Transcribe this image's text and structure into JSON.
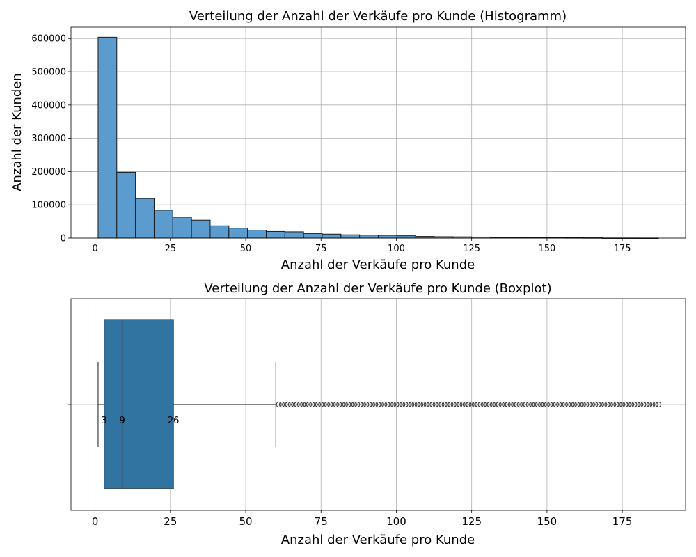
{
  "chart_data": [
    {
      "type": "bar",
      "title": "Verteilung der Anzahl der Verkäufe pro Kunde (Histogramm)",
      "xlabel": "Anzahl der Verkäufe pro Kunde",
      "ylabel": "Anzahl der Kunden",
      "xlim": [
        -8,
        196
      ],
      "ylim": [
        0,
        634000
      ],
      "xticks": [
        0,
        25,
        50,
        75,
        100,
        125,
        150,
        175
      ],
      "yticks": [
        0,
        100000,
        200000,
        300000,
        400000,
        500000,
        600000
      ],
      "grid": true,
      "bar_color": "#5b9bcd",
      "bins": {
        "start": 1,
        "width": 6.2,
        "values": [
          604000,
          198000,
          119000,
          84000,
          63000,
          54000,
          37000,
          30000,
          24000,
          20000,
          19000,
          14000,
          12000,
          10000,
          9000,
          8500,
          7000,
          5000,
          4200,
          3800,
          3200,
          2200,
          1800,
          1500,
          1300,
          1100,
          900,
          300,
          250,
          200
        ]
      }
    },
    {
      "type": "box",
      "title": "Verteilung der Anzahl der Verkäufe pro Kunde (Boxplot)",
      "xlabel": "Anzahl der Verkäufe pro Kunde",
      "xlim": [
        -8,
        196
      ],
      "xticks": [
        0,
        25,
        50,
        75,
        100,
        125,
        150,
        175
      ],
      "grid": true,
      "box_color": "#3274a1",
      "whisker_low": 1,
      "q1": 3,
      "median": 9,
      "q3": 26,
      "whisker_high": 60,
      "outliers_range": [
        61,
        187
      ],
      "annotations": [
        "3",
        "9",
        "26"
      ]
    }
  ]
}
